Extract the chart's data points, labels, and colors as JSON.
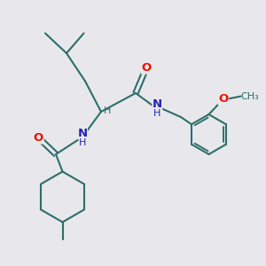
{
  "bg_color": "#e8e8ec",
  "bond_color": "#2d6e6a",
  "O_color": "#ee1100",
  "N_color": "#2222bb",
  "lw": 1.5,
  "fs": 9.5,
  "fsh": 8.0,
  "xlim": [
    0,
    10
  ],
  "ylim": [
    0,
    10
  ]
}
